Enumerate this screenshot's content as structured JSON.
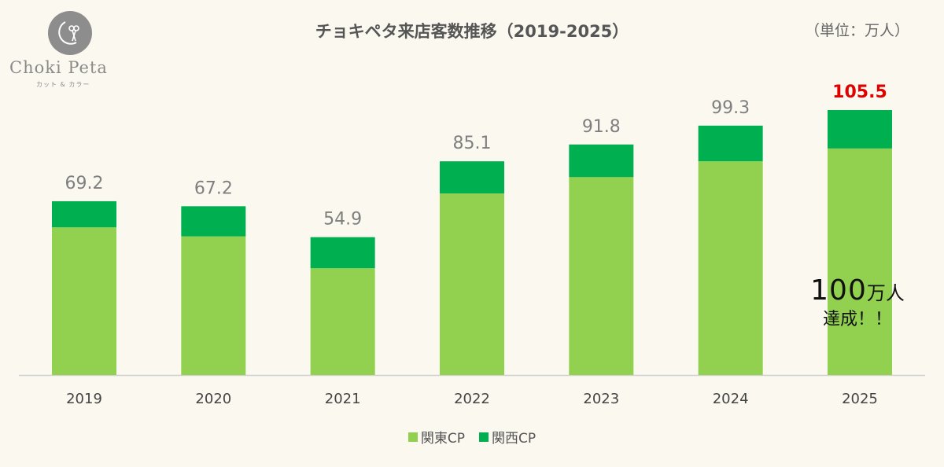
{
  "logo": {
    "name": "Choki Peta",
    "subtitle": "カット & カラー"
  },
  "unit_label": "（単位：万人）",
  "annotation": {
    "number": "100",
    "unit": "万人",
    "line2": "達成！！"
  },
  "colors": {
    "kanto": "#92d050",
    "kansai": "#00b050",
    "highlight_label": "#e00000",
    "label": "#7f7f7f",
    "background": "#fbf8f0"
  },
  "chart_data": {
    "type": "bar",
    "stacked": true,
    "title": "チョキペタ来店客数推移（2019-2025）",
    "categories": [
      "2019",
      "2020",
      "2021",
      "2022",
      "2023",
      "2024",
      "2025"
    ],
    "series": [
      {
        "name": "関東CP",
        "values": [
          58.8,
          55.2,
          42.5,
          72.3,
          78.8,
          85.1,
          90.2
        ]
      },
      {
        "name": "関西CP",
        "values": [
          10.4,
          12.0,
          12.4,
          12.8,
          13.0,
          14.2,
          15.3
        ]
      }
    ],
    "totals": [
      "69.2",
      "67.2",
      "54.9",
      "85.1",
      "91.8",
      "99.3",
      "105.5"
    ],
    "highlight_index": 6,
    "ylim": [
      0,
      105.5
    ],
    "grid": false,
    "legend_position": "bottom"
  }
}
